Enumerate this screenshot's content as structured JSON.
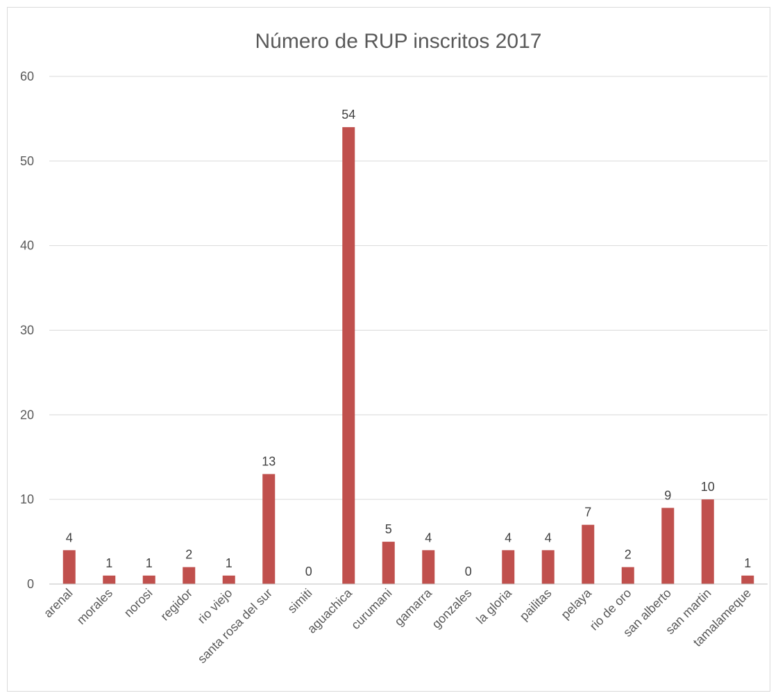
{
  "chart_data": {
    "type": "bar",
    "title": "Número de RUP inscritos 2017",
    "categories": [
      "arenal",
      "morales",
      "norosi",
      "regidor",
      "rio viejo",
      "santa rosa del sur",
      "simiti",
      "aguachica",
      "curumani",
      "gamarra",
      "gonzales",
      "la gloria",
      "pailitas",
      "pelaya",
      "rio de oro",
      "san alberto",
      "san martin",
      "tamalameque"
    ],
    "values": [
      4,
      1,
      1,
      2,
      1,
      13,
      0,
      54,
      5,
      4,
      0,
      4,
      4,
      7,
      2,
      9,
      10,
      1
    ],
    "yticks": [
      "0",
      "10",
      "20",
      "30",
      "40",
      "50",
      "60"
    ],
    "ylim": [
      0,
      60
    ],
    "grid": true,
    "legend": "none",
    "bar_color": "#c0504d"
  }
}
